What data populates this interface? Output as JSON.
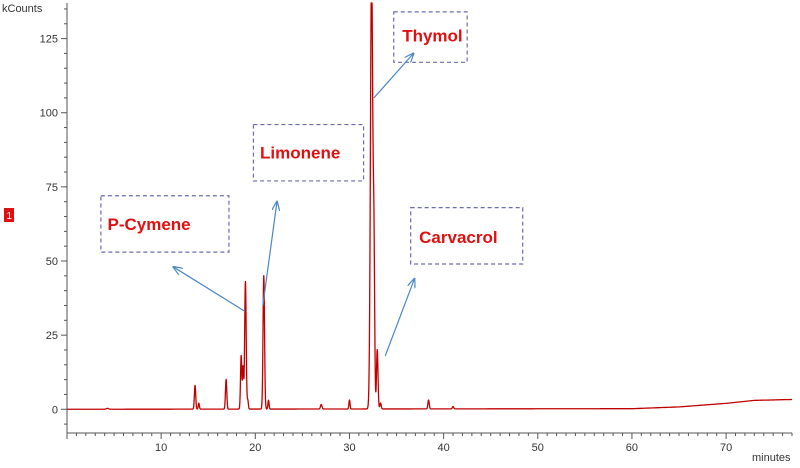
{
  "chart_data": {
    "type": "line",
    "title": "",
    "xlabel": "minutes",
    "ylabel": "kCounts",
    "xlim": [
      0,
      77
    ],
    "ylim": [
      -8,
      137
    ],
    "x_ticks": [
      10,
      20,
      30,
      40,
      50,
      60,
      70
    ],
    "y_ticks": [
      0,
      25,
      50,
      75,
      100,
      125
    ],
    "grid": false,
    "series_color": "#c00000",
    "annotation_color": "#e01010",
    "series_marker": "1",
    "peaks": [
      {
        "x": 4.3,
        "y": 0.3,
        "w": 0.12
      },
      {
        "x": 13.6,
        "y": 8,
        "w": 0.07
      },
      {
        "x": 14.0,
        "y": 2,
        "w": 0.06
      },
      {
        "x": 16.9,
        "y": 10,
        "w": 0.07
      },
      {
        "x": 18.5,
        "y": 18,
        "w": 0.07
      },
      {
        "x": 18.7,
        "y": 14,
        "w": 0.06
      },
      {
        "x": 18.95,
        "y": 43,
        "w": 0.08
      },
      {
        "x": 19.2,
        "y": 3,
        "w": 0.06
      },
      {
        "x": 20.9,
        "y": 45,
        "w": 0.08
      },
      {
        "x": 21.4,
        "y": 3,
        "w": 0.06
      },
      {
        "x": 27.0,
        "y": 1.5,
        "w": 0.08
      },
      {
        "x": 30.0,
        "y": 3,
        "w": 0.06
      },
      {
        "x": 32.35,
        "y": 150,
        "w": 0.12
      },
      {
        "x": 32.6,
        "y": 50,
        "w": 0.08
      },
      {
        "x": 32.95,
        "y": 20,
        "w": 0.08
      },
      {
        "x": 33.3,
        "y": 2,
        "w": 0.07
      },
      {
        "x": 38.4,
        "y": 3,
        "w": 0.07
      },
      {
        "x": 41.0,
        "y": 0.8,
        "w": 0.07
      }
    ],
    "baseline_drift": [
      [
        0,
        0
      ],
      [
        60,
        0.2
      ],
      [
        65,
        0.8
      ],
      [
        70,
        2.0
      ],
      [
        73,
        3.0
      ],
      [
        77,
        3.3
      ]
    ],
    "annotations": [
      {
        "label": "Thymol",
        "box_x": [
          34.7,
          42.5
        ],
        "box_y": [
          117,
          134
        ],
        "text_x": 35.6,
        "text_y": 124,
        "arrow_from": [
          32.6,
          105
        ],
        "arrow_to": [
          36.8,
          120
        ]
      },
      {
        "label": "Limonene",
        "box_x": [
          19.8,
          31.5
        ],
        "box_y": [
          77,
          96
        ],
        "text_x": 20.5,
        "text_y": 84.5,
        "arrow_from": [
          20.8,
          35
        ],
        "arrow_to": [
          22.3,
          70
        ]
      },
      {
        "label": "P-Cymene",
        "box_x": [
          3.6,
          17.2
        ],
        "box_y": [
          53,
          72
        ],
        "text_x": 4.3,
        "text_y": 60.5,
        "arrow_from": [
          18.9,
          33
        ],
        "arrow_to": [
          11.3,
          48
        ]
      },
      {
        "label": "Carvacrol",
        "box_x": [
          36.5,
          48.4
        ],
        "box_y": [
          49,
          68
        ],
        "text_x": 37.4,
        "text_y": 56,
        "arrow_from": [
          33.8,
          18
        ],
        "arrow_to": [
          36.9,
          44
        ]
      }
    ]
  }
}
